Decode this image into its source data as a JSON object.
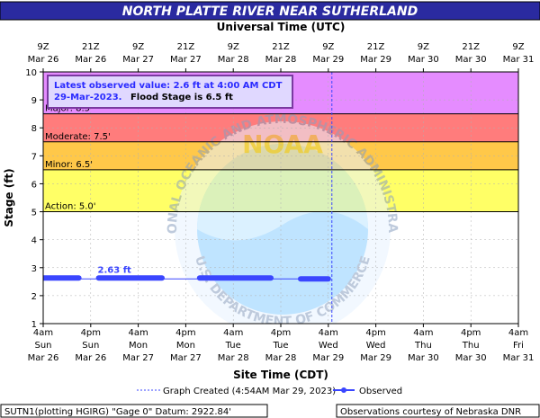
{
  "chart_data": {
    "type": "line",
    "title": "NORTH PLATTE RIVER NEAR SUTHERLAND",
    "top_axis_title": "Universal Time (UTC)",
    "xlabel": "Site Time (CDT)",
    "ylabel": "Stage (ft)",
    "ylim": [
      1,
      10
    ],
    "y_ticks": [
      1,
      2,
      3,
      4,
      5,
      6,
      7,
      8,
      9,
      10
    ],
    "x_range_hours": [
      0,
      120
    ],
    "top_ticks": [
      {
        "h": 0,
        "line1": "9Z",
        "line2": "Mar 26"
      },
      {
        "h": 12,
        "line1": "21Z",
        "line2": "Mar 26"
      },
      {
        "h": 24,
        "line1": "9Z",
        "line2": "Mar 27"
      },
      {
        "h": 36,
        "line1": "21Z",
        "line2": "Mar 27"
      },
      {
        "h": 48,
        "line1": "9Z",
        "line2": "Mar 28"
      },
      {
        "h": 60,
        "line1": "21Z",
        "line2": "Mar 28"
      },
      {
        "h": 72,
        "line1": "9Z",
        "line2": "Mar 29"
      },
      {
        "h": 84,
        "line1": "21Z",
        "line2": "Mar 29"
      },
      {
        "h": 96,
        "line1": "9Z",
        "line2": "Mar 30"
      },
      {
        "h": 108,
        "line1": "21Z",
        "line2": "Mar 30"
      },
      {
        "h": 120,
        "line1": "9Z",
        "line2": "Mar 31"
      }
    ],
    "bottom_ticks": [
      {
        "h": 0,
        "line1": "4am",
        "line2": "Sun",
        "line3": "Mar 26"
      },
      {
        "h": 12,
        "line1": "4pm",
        "line2": "Sun",
        "line3": "Mar 26"
      },
      {
        "h": 24,
        "line1": "4am",
        "line2": "Mon",
        "line3": "Mar 27"
      },
      {
        "h": 36,
        "line1": "4pm",
        "line2": "Mon",
        "line3": "Mar 27"
      },
      {
        "h": 48,
        "line1": "4am",
        "line2": "Tue",
        "line3": "Mar 28"
      },
      {
        "h": 60,
        "line1": "4pm",
        "line2": "Tue",
        "line3": "Mar 28"
      },
      {
        "h": 72,
        "line1": "4am",
        "line2": "Wed",
        "line3": "Mar 29"
      },
      {
        "h": 84,
        "line1": "4pm",
        "line2": "Wed",
        "line3": "Mar 29"
      },
      {
        "h": 96,
        "line1": "4am",
        "line2": "Thu",
        "line3": "Mar 30"
      },
      {
        "h": 108,
        "line1": "4pm",
        "line2": "Thu",
        "line3": "Mar 30"
      },
      {
        "h": 120,
        "line1": "4am",
        "line2": "Fri",
        "line3": "Mar 31"
      }
    ],
    "flood_zones": [
      {
        "label": "Action: 5.0'",
        "from": 5.0,
        "to": 6.5,
        "color": "#ffff66"
      },
      {
        "label": "Minor: 6.5'",
        "from": 6.5,
        "to": 7.5,
        "color": "#ffc849"
      },
      {
        "label": "Moderate: 7.5'",
        "from": 7.5,
        "to": 8.5,
        "color": "#ff7c7c"
      },
      {
        "label": "Major: 8.5'",
        "from": 8.5,
        "to": 10,
        "color": "#e58cff"
      }
    ],
    "graph_created_hour": 72.9,
    "series": [
      {
        "name": "Observed",
        "color": "#3a46ff",
        "segments": [
          {
            "start": 0.0,
            "end": 9.0,
            "value": 2.63
          },
          {
            "start": 14.0,
            "end": 30.0,
            "value": 2.63
          },
          {
            "start": 39.5,
            "end": 57.5,
            "value": 2.63
          },
          {
            "start": 65.0,
            "end": 72.0,
            "value": 2.6
          }
        ],
        "connector": {
          "start": 9.0,
          "end": 72.0,
          "value": 2.6
        },
        "annotation": {
          "text": "2.63 ft",
          "h": 18,
          "value": 2.63
        }
      }
    ],
    "info_box": {
      "line1": "Latest observed value: 2.6 ft at 4:00 AM CDT",
      "line2_date": "29-Mar-2023.",
      "line2_flood": "Flood Stage is 6.5 ft"
    },
    "legend": {
      "graph_created": "Graph Created (4:54AM Mar 29, 2023)",
      "observed": "Observed"
    },
    "footer_left": "SUTN1(plotting HGIRG) \"Gage 0\" Datum: 2922.84'",
    "footer_right": "Observations courtesy of Nebraska DNR",
    "watermark": {
      "text_top": "NATIONAL OCEANIC AND ATMOSPHERIC ADMINISTRATION",
      "text_bottom": "U.S. DEPARTMENT OF COMMERCE",
      "center": "NOAA"
    },
    "colors": {
      "title_bar": "#2a2aa0",
      "plot_background": "#ffffff",
      "info_box_fill": "#e0d8ff",
      "info_box_border": "#7a3aa0",
      "info_text": "#2a2aff",
      "created_line": "#3a46ff"
    }
  }
}
